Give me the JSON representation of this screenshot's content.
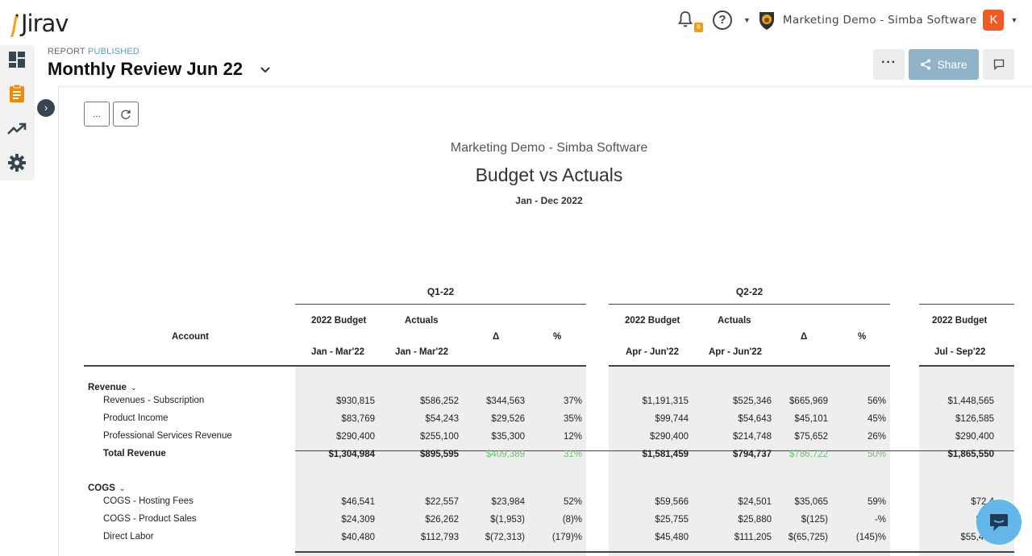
{
  "app": {
    "logo_text": "Jirav"
  },
  "topbar": {
    "notification_count": "6",
    "help_label": "?",
    "org_name": "Marketing Demo - Simba Software",
    "avatar_initial": "K"
  },
  "report": {
    "eyebrow": "REPORT",
    "status": "PUBLISHED",
    "title": "Monthly Review Jun 22",
    "more_label": "···",
    "share_label": "Share",
    "tool_more_label": "...",
    "company": "Marketing Demo - Simba Software",
    "name": "Budget vs Actuals",
    "period": "Jan - Dec 2022"
  },
  "table": {
    "account_header": "Account",
    "quarters": [
      {
        "label": "Q1-22",
        "col_budget": "2022 Budget",
        "col_actuals": "Actuals",
        "col_delta": "Δ",
        "col_pct": "%",
        "budget_period": "Jan - Mar'22",
        "actuals_period": "Jan - Mar'22"
      },
      {
        "label": "Q2-22",
        "col_budget": "2022 Budget",
        "col_actuals": "Actuals",
        "col_delta": "Δ",
        "col_pct": "%",
        "budget_period": "Apr - Jun'22",
        "actuals_period": "Apr - Jun'22"
      },
      {
        "label": "",
        "col_budget": "2022 Budget",
        "budget_period": "Jul - Sep'22"
      }
    ],
    "groups": [
      {
        "label": "Revenue",
        "caret": "⌄"
      },
      {
        "label": "COGS",
        "caret": "⌄"
      }
    ],
    "rows": [
      {
        "account": "Revenues - Subscription",
        "q1": [
          "$930,815",
          "$586,252",
          "$344,563",
          "37%"
        ],
        "q2": [
          "$1,191,315",
          "$525,346",
          "$665,969",
          "56%"
        ],
        "q3": "$1,448,565"
      },
      {
        "account": "Product Income",
        "q1": [
          "$83,769",
          "$54,243",
          "$29,526",
          "35%"
        ],
        "q2": [
          "$99,744",
          "$54,643",
          "$45,101",
          "45%"
        ],
        "q3": "$126,585"
      },
      {
        "account": "Professional Services Revenue",
        "q1": [
          "$290,400",
          "$255,100",
          "$35,300",
          "12%"
        ],
        "q2": [
          "$290,400",
          "$214,748",
          "$75,652",
          "26%"
        ],
        "q3": "$290,400"
      },
      {
        "account": "Total Revenue",
        "q1": [
          "$1,304,984",
          "$895,595",
          "$409,389",
          "31%"
        ],
        "q2": [
          "$1,581,459",
          "$794,737",
          "$786,722",
          "50%"
        ],
        "q3": "$1,865,550"
      },
      {
        "account": "COGS - Hosting Fees",
        "q1": [
          "$46,541",
          "$22,557",
          "$23,984",
          "52%"
        ],
        "q2": [
          "$59,566",
          "$24,501",
          "$35,065",
          "59%"
        ],
        "q3": "$72,4"
      },
      {
        "account": "COGS - Product Sales",
        "q1": [
          "$24,309",
          "$26,262",
          "$(1,953)",
          "(8)%"
        ],
        "q2": [
          "$25,755",
          "$25,880",
          "$(125)",
          "-%"
        ],
        "q3": "$26,"
      },
      {
        "account": "Direct Labor",
        "q1": [
          "$40,480",
          "$112,793",
          "$(72,313)",
          "(179)%"
        ],
        "q2": [
          "$45,480",
          "$111,205",
          "$(65,725)",
          "(145)%"
        ],
        "q3": "$55,480"
      }
    ]
  }
}
